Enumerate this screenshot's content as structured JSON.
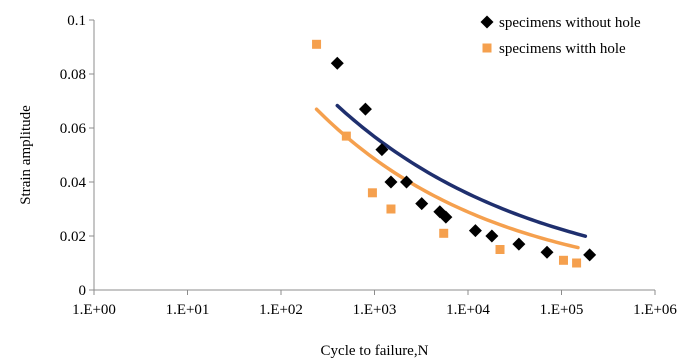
{
  "chart_data": {
    "type": "scatter",
    "title": "",
    "xlabel": "Cycle to failure,N",
    "ylabel": "Strain amplitude",
    "x_scale": "log",
    "xlim": [
      1,
      1000000
    ],
    "ylim": [
      0,
      0.1
    ],
    "x_ticks": [
      1,
      10,
      100,
      1000,
      10000,
      100000,
      1000000
    ],
    "x_tick_labels": [
      "1.E+00",
      "1.E+01",
      "1.E+02",
      "1.E+03",
      "1.E+04",
      "1.E+05",
      "1.E+06"
    ],
    "y_ticks": [
      0,
      0.02,
      0.04,
      0.06,
      0.08,
      0.1
    ],
    "y_tick_labels": [
      "0",
      "0.02",
      "0.04",
      "0.06",
      "0.08",
      "0.1"
    ],
    "grid": false,
    "legend_position": "top-right",
    "series": [
      {
        "name": "specimens without hole",
        "marker": "diamond",
        "color": "#000000",
        "fit_color": "#1f2f6e",
        "points": [
          [
            400,
            0.084
          ],
          [
            800,
            0.067
          ],
          [
            1200,
            0.052
          ],
          [
            1500,
            0.04
          ],
          [
            2200,
            0.04
          ],
          [
            3200,
            0.032
          ],
          [
            5000,
            0.029
          ],
          [
            5800,
            0.027
          ],
          [
            12000,
            0.022
          ],
          [
            18000,
            0.02
          ],
          [
            35000,
            0.017
          ],
          [
            70000,
            0.014
          ],
          [
            200000,
            0.013
          ]
        ],
        "fit_range": [
          400,
          180000
        ],
        "fit": {
          "a": 0.2284,
          "b": -0.2015
        }
      },
      {
        "name": "specimens witth hole",
        "marker": "square",
        "color": "#f5a04e",
        "fit_color": "#f5a04e",
        "points": [
          [
            240,
            0.091
          ],
          [
            500,
            0.057
          ],
          [
            950,
            0.036
          ],
          [
            1500,
            0.03
          ],
          [
            5500,
            0.021
          ],
          [
            22000,
            0.015
          ],
          [
            105000,
            0.011
          ],
          [
            145000,
            0.01
          ]
        ],
        "fit_range": [
          240,
          150000
        ],
        "fit": {
          "a": 0.2302,
          "b": -0.2253
        }
      }
    ]
  }
}
